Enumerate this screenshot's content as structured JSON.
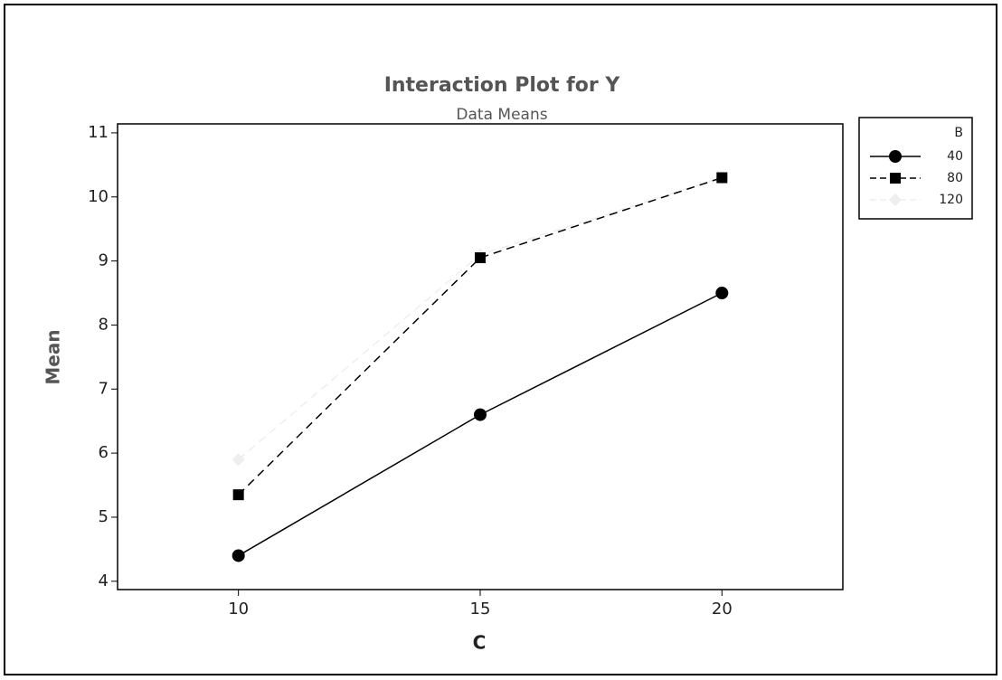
{
  "chart_data": {
    "type": "line",
    "title": "Interaction Plot for Y",
    "subtitle": "Data Means",
    "x_label": "C",
    "y_label": "Mean",
    "legend_title": "B",
    "x": [
      10,
      15,
      20
    ],
    "series": [
      {
        "name": "40",
        "color": "#000000",
        "marker": "circle",
        "dash": false,
        "values": [
          4.4,
          6.6,
          8.5
        ]
      },
      {
        "name": "80",
        "color": "#000000",
        "marker": "square",
        "dash": true,
        "values": [
          5.35,
          9.05,
          10.3
        ]
      },
      {
        "name": "120",
        "color": "#eeeeee",
        "marker": "diamond",
        "dash": true,
        "values": [
          5.9,
          9.1,
          10.3
        ]
      }
    ],
    "xlim": [
      7.5,
      22.5
    ],
    "xticks": [
      10,
      15,
      20
    ],
    "ylim": [
      3.87,
      11.14
    ],
    "yticks": [
      4,
      5,
      6,
      7,
      8,
      9,
      10,
      11
    ],
    "legend": "right"
  }
}
